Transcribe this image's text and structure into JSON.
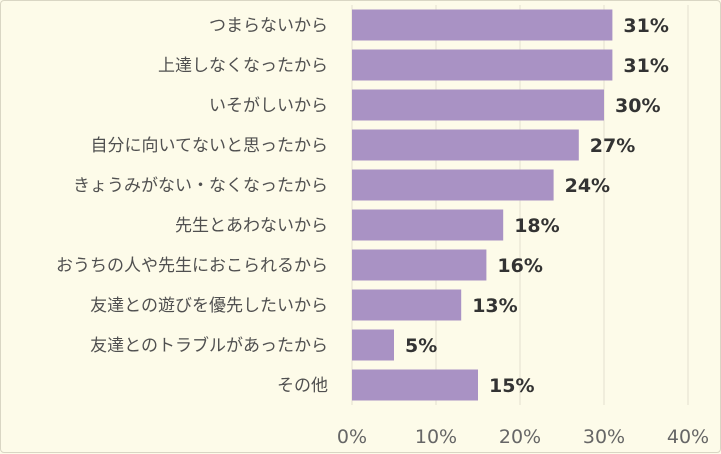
{
  "colors": {
    "background": "#fdfbe9",
    "bar": "#a992c4",
    "grid": "#e2dfd0",
    "label_text": "#505050",
    "value_text": "#333333",
    "tick_text": "#666666"
  },
  "chart_data": {
    "type": "bar",
    "orientation": "horizontal",
    "title": "",
    "xlabel": "",
    "ylabel": "",
    "categories": [
      "つまらないから",
      "上達しなくなったから",
      "いそがしいから",
      "自分に向いてないと思ったから",
      "きょうみがない・なくなったから",
      "先生とあわないから",
      "おうちの人や先生におこられるから",
      "友達との遊びを優先したいから",
      "友達とのトラブルがあったから",
      "その他"
    ],
    "values": [
      31,
      31,
      30,
      27,
      24,
      18,
      16,
      13,
      5,
      15
    ],
    "value_labels": [
      "31%",
      "31%",
      "30%",
      "27%",
      "24%",
      "18%",
      "16%",
      "13%",
      "5%",
      "15%"
    ],
    "xlim": [
      0,
      40
    ],
    "x_ticks": [
      0,
      10,
      20,
      30,
      40
    ],
    "x_tick_labels": [
      "0%",
      "10%",
      "20%",
      "30%",
      "40%"
    ],
    "grid": true,
    "legend": "none"
  }
}
